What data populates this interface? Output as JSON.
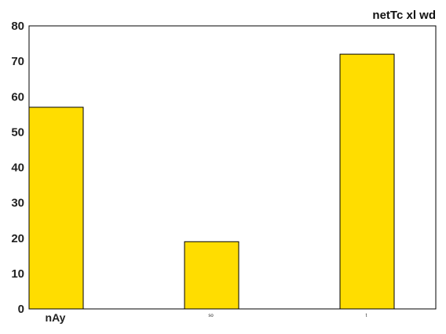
{
  "chart_data": {
    "type": "bar",
    "title": "netTc xl wd",
    "categories": [
      "nAy",
      "so",
      "t"
    ],
    "values": [
      57,
      19,
      72
    ],
    "xlabel": "",
    "ylabel": "",
    "ylim": [
      0,
      80
    ],
    "yticks": [
      "0",
      "10",
      "20",
      "30",
      "40",
      "50",
      "60",
      "70",
      "80"
    ],
    "grid": false,
    "legend": "none",
    "bar_color": "#FFDD00",
    "bar_edge_color": "#000000"
  }
}
